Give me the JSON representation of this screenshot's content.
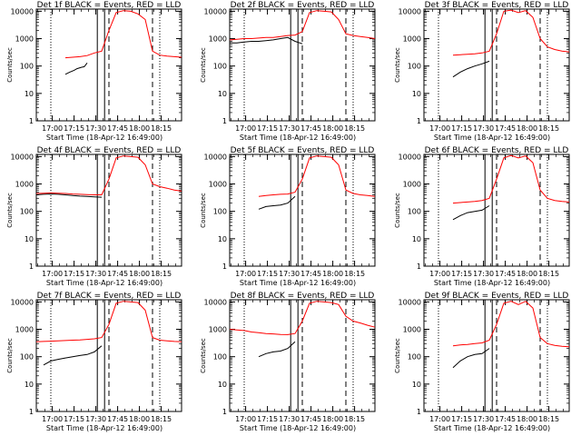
{
  "colors": {
    "events": "#000000",
    "lld": "#ff0000",
    "background": "#ffffff"
  },
  "chart_data": [
    {
      "type": "line",
      "title": "Det 1f BLACK = Events, RED = LLD",
      "ylabel": "Counts/sec",
      "xlabel": "Start Time (18-Apr-12 16:49:00)",
      "x_tick_labels": [
        "17:00",
        "17:15",
        "17:30",
        "17:45",
        "18:00",
        "18:15"
      ],
      "y_tick_labels": [
        "1",
        "10",
        "100",
        "1000",
        "10000"
      ],
      "y_scale": "log",
      "ylim": [
        1,
        12000
      ],
      "xlim_minutes_after_1649": [
        0,
        100
      ],
      "series": [
        {
          "color": "#000000",
          "x": [
            0,
            5,
            8,
            11,
            14,
            17,
            20,
            23,
            26,
            28,
            31,
            33,
            35
          ],
          "values": [
            null,
            null,
            null,
            null,
            null,
            null,
            50,
            60,
            70,
            80,
            90,
            95,
            130
          ]
        },
        {
          "color": "#ff0000",
          "x": [
            0,
            5,
            10,
            15,
            20,
            25,
            30,
            35,
            40,
            45,
            50,
            55,
            60,
            65,
            70,
            75,
            80,
            85,
            90,
            95,
            100
          ],
          "values": [
            null,
            null,
            null,
            null,
            200,
            210,
            220,
            240,
            300,
            350,
            2000,
            9000,
            10500,
            10000,
            8000,
            5000,
            350,
            250,
            230,
            220,
            210
          ]
        }
      ],
      "vertical_lines": {
        "dotted": [
          10,
          85
        ],
        "solid": [
          42,
          47
        ],
        "dashed": [
          50,
          80
        ]
      }
    },
    {
      "type": "line",
      "title": "Det 2f BLACK = Events, RED = LLD",
      "ylabel": "Counts/sec",
      "xlabel": "Start Time (18-Apr-12 16:49:00)",
      "x_tick_labels": [
        "17:00",
        "17:15",
        "17:30",
        "17:45",
        "18:00",
        "18:15"
      ],
      "y_tick_labels": [
        "1",
        "10",
        "100",
        "1000",
        "10000"
      ],
      "y_scale": "log",
      "ylim": [
        1,
        12000
      ],
      "xlim_minutes_after_1649": [
        0,
        100
      ],
      "series": [
        {
          "color": "#000000",
          "x": [
            0,
            5,
            10,
            15,
            20,
            25,
            30,
            35,
            40,
            45,
            50
          ],
          "values": [
            700,
            700,
            750,
            800,
            800,
            850,
            900,
            1000,
            1100,
            800,
            650
          ]
        },
        {
          "color": "#ff0000",
          "x": [
            0,
            5,
            10,
            15,
            20,
            25,
            30,
            35,
            40,
            45,
            50,
            55,
            60,
            65,
            70,
            75,
            80,
            85,
            90,
            95,
            100
          ],
          "values": [
            900,
            950,
            1000,
            1000,
            1050,
            1100,
            1100,
            1200,
            1300,
            1350,
            1800,
            9000,
            10500,
            10000,
            9500,
            5000,
            1500,
            1300,
            1200,
            1100,
            1000
          ]
        }
      ],
      "vertical_lines": {
        "dotted": [
          10,
          85
        ],
        "solid": [
          42,
          47
        ],
        "dashed": [
          50,
          80
        ]
      }
    },
    {
      "type": "line",
      "title": "Det 3f BLACK = Events, RED = LLD",
      "ylabel": "Counts/sec",
      "xlabel": "Start Time (18-Apr-12 16:49:00)",
      "x_tick_labels": [
        "17:00",
        "17:15",
        "17:30",
        "17:45",
        "18:00",
        "18:15"
      ],
      "y_tick_labels": [
        "1",
        "10",
        "100",
        "1000",
        "10000"
      ],
      "y_scale": "log",
      "ylim": [
        1,
        12000
      ],
      "xlim_minutes_after_1649": [
        0,
        100
      ],
      "series": [
        {
          "color": "#000000",
          "x": [
            20,
            25,
            30,
            35,
            40,
            45
          ],
          "values": [
            40,
            60,
            80,
            100,
            120,
            150
          ]
        },
        {
          "color": "#ff0000",
          "x": [
            0,
            5,
            10,
            15,
            20,
            25,
            30,
            35,
            40,
            45,
            50,
            55,
            60,
            65,
            70,
            75,
            80,
            85,
            90,
            95,
            100
          ],
          "values": [
            null,
            null,
            null,
            null,
            250,
            260,
            270,
            280,
            300,
            350,
            1500,
            10000,
            11000,
            9000,
            10500,
            6000,
            1000,
            500,
            400,
            350,
            330
          ]
        }
      ],
      "vertical_lines": {
        "dotted": [
          10,
          85
        ],
        "solid": [
          42,
          47
        ],
        "dashed": [
          50,
          80
        ]
      }
    },
    {
      "type": "line",
      "title": "Det 4f BLACK = Events, RED = LLD",
      "ylabel": "Counts/sec",
      "xlabel": "Start Time (18-Apr-12 16:49:00)",
      "x_tick_labels": [
        "17:00",
        "17:15",
        "17:30",
        "17:45",
        "18:00",
        "18:15"
      ],
      "y_tick_labels": [
        "1",
        "10",
        "100",
        "1000",
        "10000"
      ],
      "y_scale": "log",
      "ylim": [
        1,
        12000
      ],
      "xlim_minutes_after_1649": [
        0,
        100
      ],
      "series": [
        {
          "color": "#000000",
          "x": [
            0,
            5,
            10,
            15,
            20,
            25,
            30,
            35,
            40,
            45
          ],
          "values": [
            400,
            420,
            430,
            420,
            400,
            380,
            360,
            350,
            340,
            330
          ]
        },
        {
          "color": "#ff0000",
          "x": [
            0,
            5,
            10,
            15,
            20,
            25,
            30,
            35,
            40,
            45,
            50,
            55,
            60,
            65,
            70,
            75,
            80,
            85,
            90,
            95,
            100
          ],
          "values": [
            450,
            460,
            470,
            460,
            450,
            430,
            420,
            410,
            400,
            400,
            1500,
            9000,
            10500,
            10000,
            9500,
            5000,
            1000,
            800,
            700,
            600,
            550
          ]
        }
      ],
      "vertical_lines": {
        "dotted": [
          10,
          85
        ],
        "solid": [
          42,
          47
        ],
        "dashed": [
          50,
          80
        ]
      }
    },
    {
      "type": "line",
      "title": "Det 5f BLACK = Events, RED = LLD",
      "ylabel": "Counts/sec",
      "xlabel": "Start Time (18-Apr-12 16:49:00)",
      "x_tick_labels": [
        "17:00",
        "17:15",
        "17:30",
        "17:45",
        "18:00",
        "18:15"
      ],
      "y_tick_labels": [
        "1",
        "10",
        "100",
        "1000",
        "10000"
      ],
      "y_scale": "log",
      "ylim": [
        1,
        12000
      ],
      "xlim_minutes_after_1649": [
        0,
        100
      ],
      "series": [
        {
          "color": "#000000",
          "x": [
            20,
            25,
            30,
            35,
            40,
            45
          ],
          "values": [
            120,
            150,
            160,
            170,
            200,
            350
          ]
        },
        {
          "color": "#ff0000",
          "x": [
            0,
            5,
            10,
            15,
            20,
            25,
            30,
            35,
            40,
            45,
            50,
            55,
            60,
            65,
            70,
            75,
            80,
            85,
            90,
            95,
            100
          ],
          "values": [
            null,
            null,
            null,
            null,
            350,
            380,
            400,
            420,
            430,
            500,
            1500,
            9000,
            10500,
            10000,
            9500,
            5000,
            600,
            450,
            400,
            380,
            350
          ]
        }
      ],
      "vertical_lines": {
        "dotted": [
          10,
          85
        ],
        "solid": [
          42,
          47
        ],
        "dashed": [
          50,
          80
        ]
      }
    },
    {
      "type": "line",
      "title": "Det 6f BLACK = Events, RED = LLD",
      "ylabel": "Counts/sec",
      "xlabel": "Start Time (18-Apr-12 16:49:00)",
      "x_tick_labels": [
        "17:00",
        "17:15",
        "17:30",
        "17:45",
        "18:00",
        "18:15"
      ],
      "y_tick_labels": [
        "1",
        "10",
        "100",
        "1000",
        "10000"
      ],
      "y_scale": "log",
      "ylim": [
        1,
        12000
      ],
      "xlim_minutes_after_1649": [
        0,
        100
      ],
      "series": [
        {
          "color": "#000000",
          "x": [
            20,
            25,
            30,
            35,
            40,
            45
          ],
          "values": [
            50,
            70,
            90,
            100,
            110,
            160
          ]
        },
        {
          "color": "#ff0000",
          "x": [
            0,
            5,
            10,
            15,
            20,
            25,
            30,
            35,
            40,
            45,
            50,
            55,
            60,
            65,
            70,
            75,
            80,
            85,
            90,
            95,
            100
          ],
          "values": [
            null,
            null,
            null,
            null,
            200,
            210,
            220,
            230,
            250,
            300,
            1500,
            9000,
            11000,
            9000,
            10500,
            6000,
            600,
            300,
            250,
            230,
            220
          ]
        }
      ],
      "vertical_lines": {
        "dotted": [
          10,
          85
        ],
        "solid": [
          42,
          47
        ],
        "dashed": [
          50,
          80
        ]
      }
    },
    {
      "type": "line",
      "title": "Det 7f BLACK = Events, RED = LLD",
      "ylabel": "Counts/sec",
      "xlabel": "Start Time (18-Apr-12 16:49:00)",
      "x_tick_labels": [
        "17:00",
        "17:15",
        "17:30",
        "17:45",
        "18:00",
        "18:15"
      ],
      "y_tick_labels": [
        "1",
        "10",
        "100",
        "1000",
        "10000"
      ],
      "y_scale": "log",
      "ylim": [
        1,
        12000
      ],
      "xlim_minutes_after_1649": [
        0,
        100
      ],
      "series": [
        {
          "color": "#000000",
          "x": [
            5,
            10,
            15,
            20,
            25,
            30,
            35,
            40,
            45
          ],
          "values": [
            50,
            70,
            80,
            90,
            100,
            110,
            120,
            150,
            250
          ]
        },
        {
          "color": "#ff0000",
          "x": [
            0,
            5,
            10,
            15,
            20,
            25,
            30,
            35,
            40,
            45,
            50,
            55,
            60,
            65,
            70,
            75,
            80,
            85,
            90,
            95,
            100
          ],
          "values": [
            350,
            360,
            370,
            380,
            390,
            400,
            410,
            430,
            450,
            500,
            1500,
            9000,
            10500,
            10000,
            9500,
            5000,
            500,
            400,
            380,
            360,
            350
          ]
        }
      ],
      "vertical_lines": {
        "dotted": [
          10,
          85
        ],
        "solid": [
          42,
          47
        ],
        "dashed": [
          50,
          80
        ]
      }
    },
    {
      "type": "line",
      "title": "Det 8f BLACK = Events, RED = LLD",
      "ylabel": "Counts/sec",
      "xlabel": "Start Time (18-Apr-12 16:49:00)",
      "x_tick_labels": [
        "17:00",
        "17:15",
        "17:30",
        "17:45",
        "18:00",
        "18:15"
      ],
      "y_tick_labels": [
        "1",
        "10",
        "100",
        "1000",
        "10000"
      ],
      "y_scale": "log",
      "ylim": [
        1,
        12000
      ],
      "xlim_minutes_after_1649": [
        0,
        100
      ],
      "series": [
        {
          "color": "#000000",
          "x": [
            20,
            25,
            30,
            35,
            40,
            45
          ],
          "values": [
            100,
            130,
            150,
            160,
            200,
            350
          ]
        },
        {
          "color": "#ff0000",
          "x": [
            0,
            5,
            10,
            15,
            20,
            25,
            30,
            35,
            40,
            45,
            50,
            55,
            60,
            65,
            70,
            75,
            80,
            85,
            90,
            95,
            100
          ],
          "values": [
            1000,
            950,
            900,
            800,
            750,
            700,
            680,
            650,
            640,
            700,
            2000,
            9000,
            10500,
            10000,
            9500,
            8000,
            3000,
            2000,
            1700,
            1400,
            1200
          ]
        }
      ],
      "vertical_lines": {
        "dotted": [
          10,
          85
        ],
        "solid": [
          42,
          47
        ],
        "dashed": [
          50,
          80
        ]
      }
    },
    {
      "type": "line",
      "title": "Det 9f BLACK = Events, RED = LLD",
      "ylabel": "Counts/sec",
      "xlabel": "Start Time (18-Apr-12 16:49:00)",
      "x_tick_labels": [
        "17:00",
        "17:15",
        "17:30",
        "17:45",
        "18:00",
        "18:15"
      ],
      "y_tick_labels": [
        "1",
        "10",
        "100",
        "1000",
        "10000"
      ],
      "y_scale": "log",
      "ylim": [
        1,
        12000
      ],
      "xlim_minutes_after_1649": [
        0,
        100
      ],
      "series": [
        {
          "color": "#000000",
          "x": [
            20,
            25,
            30,
            35,
            40,
            45
          ],
          "values": [
            40,
            70,
            100,
            120,
            130,
            200
          ]
        },
        {
          "color": "#ff0000",
          "x": [
            0,
            5,
            10,
            15,
            20,
            25,
            30,
            35,
            40,
            45,
            50,
            55,
            60,
            65,
            70,
            75,
            80,
            85,
            90,
            95,
            100
          ],
          "values": [
            null,
            null,
            null,
            null,
            250,
            270,
            280,
            300,
            320,
            400,
            1500,
            9000,
            10500,
            8000,
            10500,
            6000,
            500,
            300,
            260,
            240,
            230
          ]
        }
      ],
      "vertical_lines": {
        "dotted": [
          10,
          85
        ],
        "solid": [
          42,
          47
        ],
        "dashed": [
          50,
          80
        ]
      }
    }
  ]
}
